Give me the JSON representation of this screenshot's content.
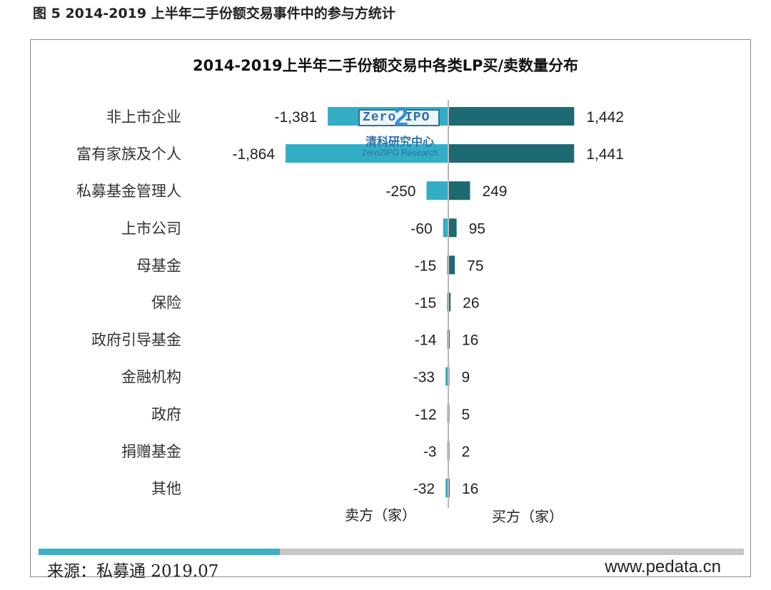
{
  "figure_caption": "图 5 2014-2019 上半年二手份额交易事件中的参与方统计",
  "chart_data": {
    "type": "bar",
    "orientation": "horizontal-diverging",
    "title": "2014-2019上半年二手份额交易中各类LP买/卖数量分布",
    "categories": [
      "非上市企业",
      "富有家族及个人",
      "私募基金管理人",
      "上市公司",
      "母基金",
      "保险",
      "政府引导基金",
      "金融机构",
      "政府",
      "捐赠基金",
      "其他"
    ],
    "series": [
      {
        "name": "卖方（家）",
        "values": [
          -1381,
          -1864,
          -250,
          -60,
          -15,
          -15,
          -14,
          -33,
          -12,
          -3,
          -32
        ],
        "color": "#33aec4"
      },
      {
        "name": "买方（家）",
        "values": [
          1442,
          1441,
          249,
          95,
          75,
          26,
          16,
          9,
          5,
          2,
          16
        ],
        "color": "#1e6a72"
      }
    ],
    "value_labels": {
      "sell": [
        "-1,381",
        "-1,864",
        "-250",
        "-60",
        "-15",
        "-15",
        "-14",
        "-33",
        "-12",
        "-3",
        "-32"
      ],
      "buy": [
        "1,442",
        "1,441",
        "249",
        "95",
        "75",
        "26",
        "16",
        "9",
        "5",
        "2",
        "16"
      ]
    },
    "xlim": [
      -1864,
      1442
    ],
    "grid": false,
    "legend": "none"
  },
  "watermark": {
    "logo_text": "Zero IPO",
    "logo_digit": "2",
    "cn_name": "清科研究中心",
    "en_name": "Zero2IPO Research"
  },
  "footer": {
    "source": "来源：私募通 2019.07",
    "website": "www.pedata.cn"
  }
}
